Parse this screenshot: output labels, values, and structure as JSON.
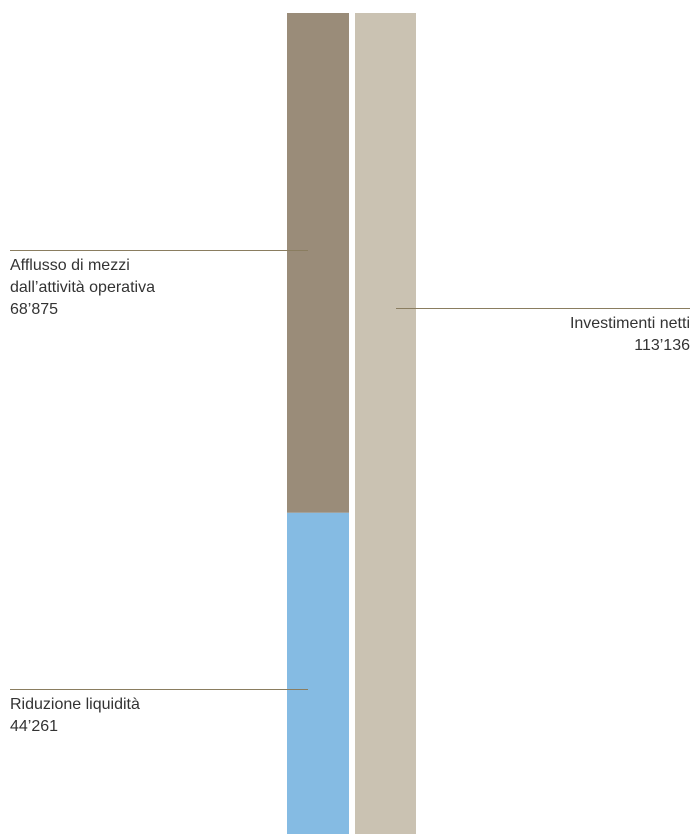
{
  "chart_data": {
    "type": "bar",
    "stacked": true,
    "columns": [
      {
        "name": "",
        "segments": [
          {
            "label_lines": [
              "Afflusso di mezzi",
              "dall’attività operativa"
            ],
            "value": 68875,
            "value_text": "68’875",
            "color": "#9a8c79"
          },
          {
            "label_lines": [
              "Riduzione liquidità"
            ],
            "value": 44261,
            "value_text": "44’261",
            "color": "#85bbe3"
          }
        ]
      },
      {
        "name": "",
        "segments": [
          {
            "label_lines": [
              "Investimenti netti"
            ],
            "value": 113136,
            "value_text": "113’136",
            "color": "#cac2b2"
          }
        ]
      }
    ],
    "leader_line_color": "#8a7d60",
    "text_color": "#333333",
    "ylim": [
      0,
      113136
    ],
    "grid": false,
    "legend": "none"
  }
}
